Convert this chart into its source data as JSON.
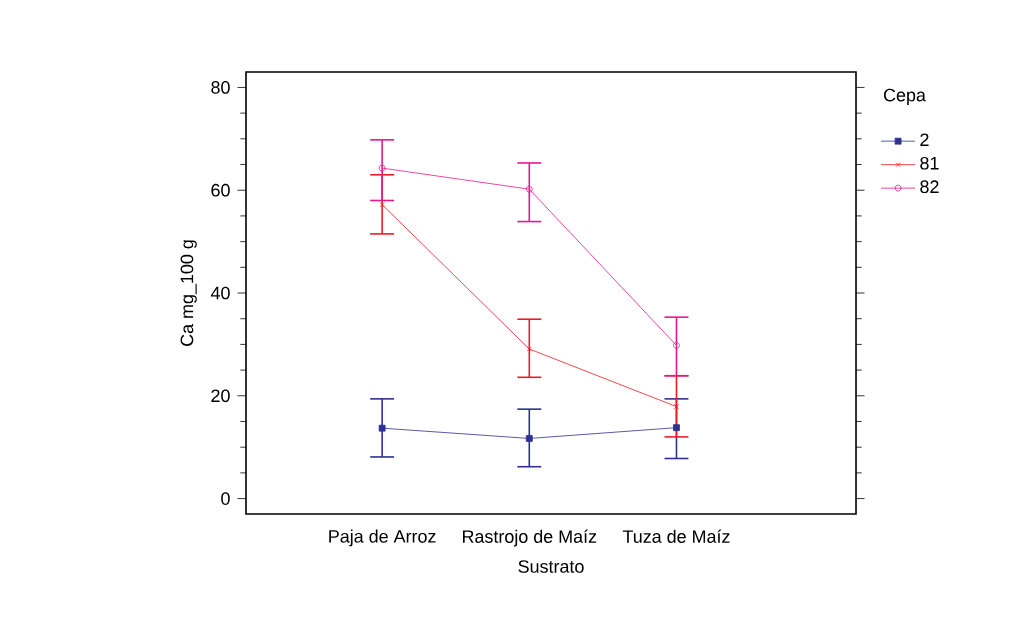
{
  "chart_data": {
    "type": "line",
    "xlabel": "Sustrato",
    "ylabel": "Ca mg_100 g",
    "legend_title": "Cepa",
    "categories": [
      "Paja de Arroz",
      "Rastrojo de Maíz",
      "Tuza de Maíz"
    ],
    "ylim": [
      -3,
      83
    ],
    "yticks": [
      0,
      20,
      40,
      60,
      80
    ],
    "legend": "right",
    "grid": false,
    "series": [
      {
        "name": "2",
        "color": "#2e3192",
        "marker": "square",
        "values": [
          13.7,
          11.7,
          13.8
        ],
        "errors": [
          [
            8.1,
            19.4
          ],
          [
            6.2,
            17.4
          ],
          [
            7.8,
            19.4
          ]
        ]
      },
      {
        "name": "81",
        "color": "#ed1c24",
        "marker": "cross",
        "values": [
          57.2,
          29.1,
          17.9
        ],
        "errors": [
          [
            51.5,
            63.0
          ],
          [
            23.6,
            34.9
          ],
          [
            12.0,
            23.9
          ]
        ]
      },
      {
        "name": "82",
        "color": "#e6198c",
        "marker": "circle",
        "values": [
          64.3,
          60.2,
          29.8
        ],
        "errors": [
          [
            58.0,
            69.8
          ],
          [
            53.9,
            65.3
          ],
          [
            23.9,
            35.3
          ]
        ]
      }
    ]
  }
}
